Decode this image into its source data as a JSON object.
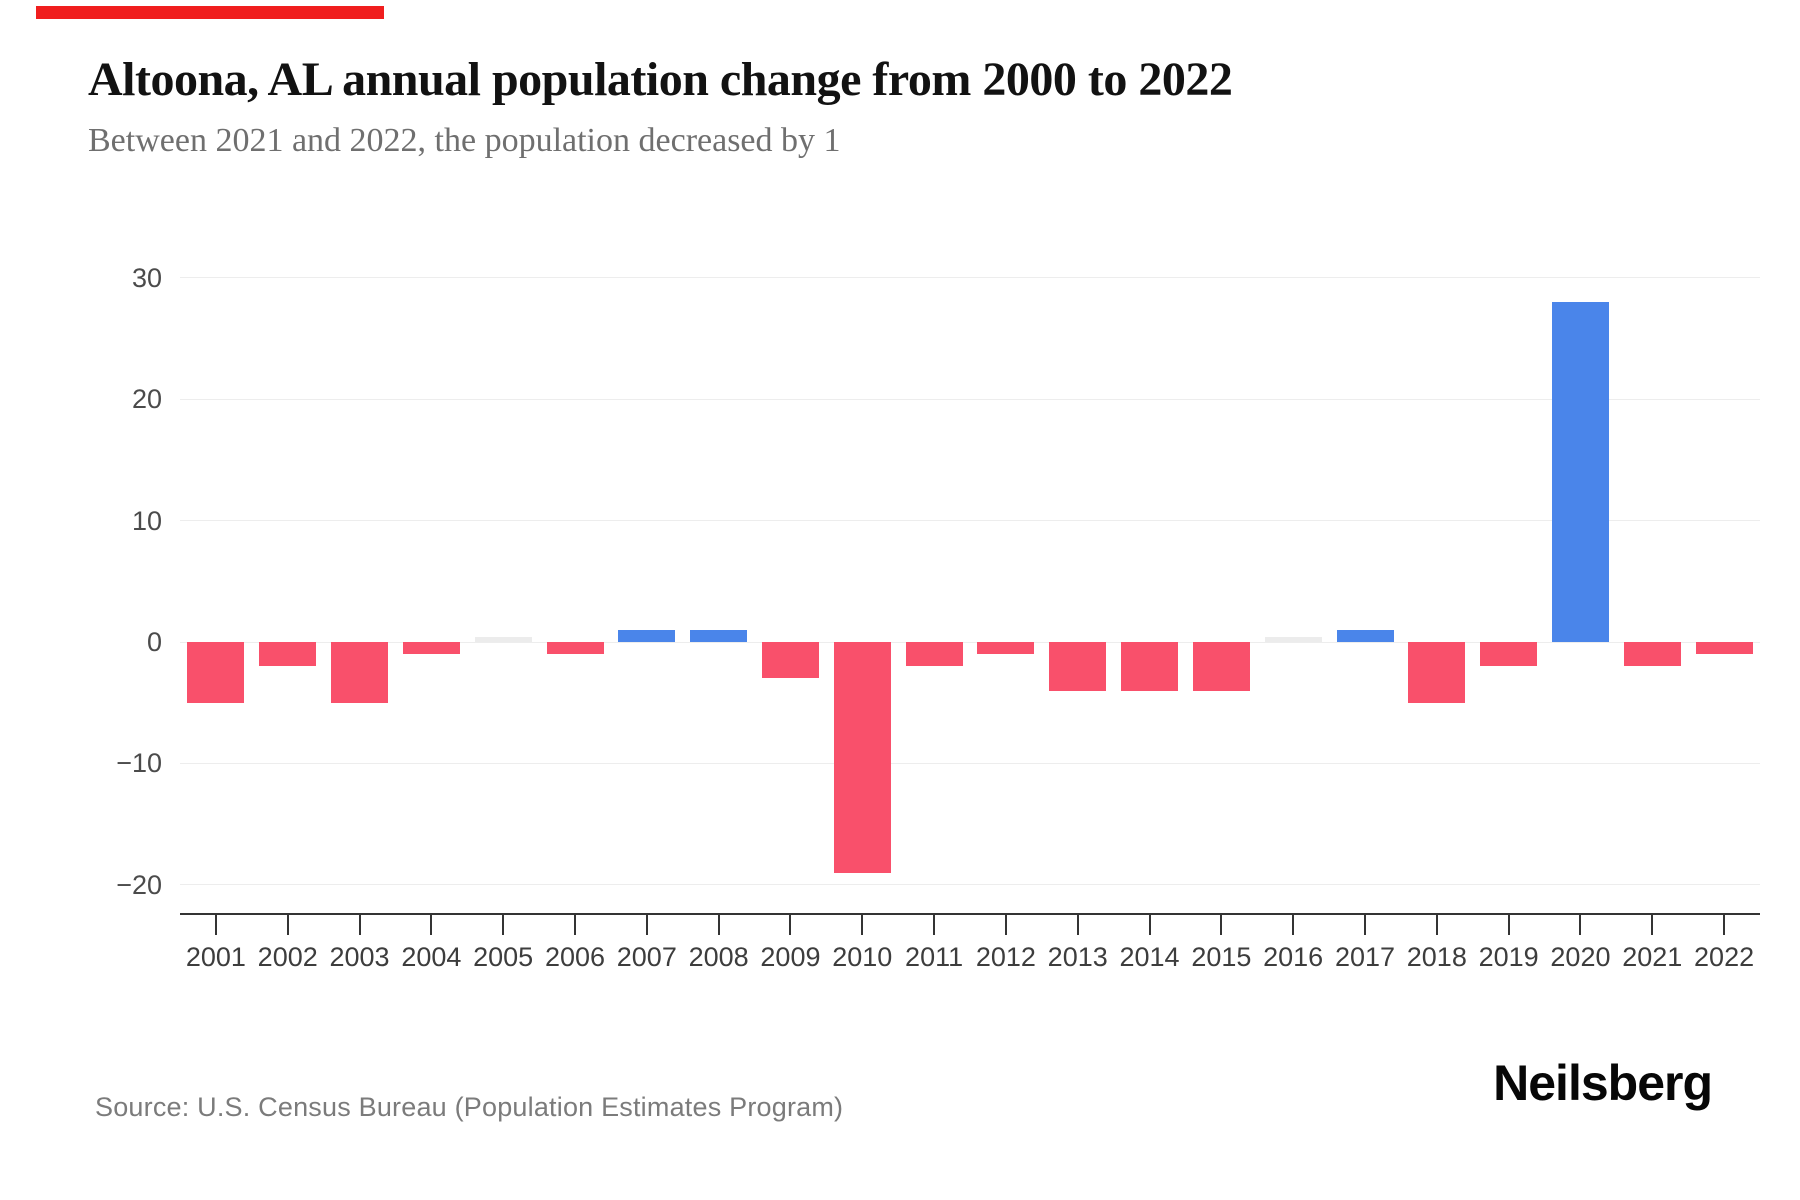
{
  "page": {
    "accent_bar_color": "#f01e1e",
    "title": "Altoona, AL annual population change from 2000 to 2022",
    "subtitle": "Between 2021 and 2022, the population decreased by 1",
    "source": "Source: U.S. Census Bureau (Population Estimates Program)",
    "brand": "Neilsberg"
  },
  "chart_data": {
    "type": "bar",
    "title": "Altoona, AL annual population change from 2000 to 2022",
    "categories": [
      "2001",
      "2002",
      "2003",
      "2004",
      "2005",
      "2006",
      "2007",
      "2008",
      "2009",
      "2010",
      "2011",
      "2012",
      "2013",
      "2014",
      "2015",
      "2016",
      "2017",
      "2018",
      "2019",
      "2020",
      "2021",
      "2022"
    ],
    "values": [
      -5,
      -2,
      -5,
      -1,
      0,
      -1,
      1,
      1,
      -3,
      -19,
      -2,
      -1,
      -4,
      -4,
      -4,
      0,
      1,
      -5,
      -2,
      28,
      -2,
      -1
    ],
    "xlabel": "",
    "ylabel": "",
    "y_ticks": [
      30,
      20,
      10,
      0,
      -10,
      -20
    ],
    "ylim": [
      -24,
      34
    ],
    "grid": true,
    "legend": false,
    "colors": {
      "positive": "#4a85ea",
      "negative": "#f9506b",
      "zero": "#ececec"
    },
    "gridline_color": "#ededed",
    "axis_color": "#343434",
    "tick_color": "#343434",
    "tick_label_color": "#3d3d3d"
  }
}
